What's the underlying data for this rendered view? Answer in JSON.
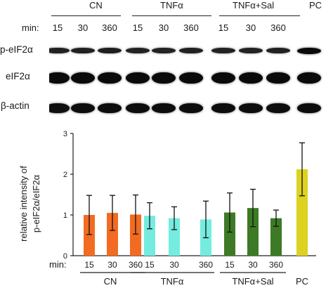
{
  "blot": {
    "groups": [
      "CN",
      "TNFα",
      "TNFα+Sal",
      "PC"
    ],
    "min_label": "min:",
    "times": [
      "15",
      "30",
      "360",
      "15",
      "30",
      "360",
      "15",
      "30",
      "360"
    ],
    "rows": [
      {
        "label": "p-eIF2α",
        "intensity": [
          0.55,
          0.55,
          0.6,
          0.5,
          0.5,
          0.55,
          0.5,
          0.5,
          0.55,
          1.0
        ]
      },
      {
        "label": "eIF2α",
        "intensity": [
          1.0,
          1.0,
          1.0,
          1.0,
          1.0,
          1.0,
          1.0,
          1.0,
          1.0,
          1.0
        ]
      },
      {
        "label": "β-actin",
        "intensity": [
          0.9,
          0.95,
          0.95,
          0.95,
          0.95,
          0.95,
          0.95,
          0.95,
          0.95,
          0.95
        ]
      }
    ]
  },
  "chart_data": {
    "type": "bar",
    "ylabel_line1": "relative intensity of",
    "ylabel_line2": "p-eIF2α/eIF2α",
    "ylim": [
      0,
      3
    ],
    "yticks": [
      "0",
      "1",
      "2",
      "3"
    ],
    "min_label": "min:",
    "categories": [
      "15",
      "30",
      "360",
      "15",
      "30",
      "360",
      "15",
      "30",
      "360",
      ""
    ],
    "values": [
      1.0,
      1.05,
      1.01,
      0.98,
      0.92,
      0.89,
      1.06,
      1.17,
      0.92,
      2.12
    ],
    "errors": [
      0.48,
      0.43,
      0.48,
      0.32,
      0.28,
      0.45,
      0.48,
      0.46,
      0.2,
      0.65
    ],
    "colors": [
      "#f26b21",
      "#f26b21",
      "#f26b21",
      "#74ecdf",
      "#74ecdf",
      "#74ecdf",
      "#3d7a25",
      "#3d7a25",
      "#3d7a25",
      "#dcd21f"
    ],
    "group_labels": [
      "CN",
      "TNFα",
      "TNFα+Sal",
      "PC"
    ]
  }
}
